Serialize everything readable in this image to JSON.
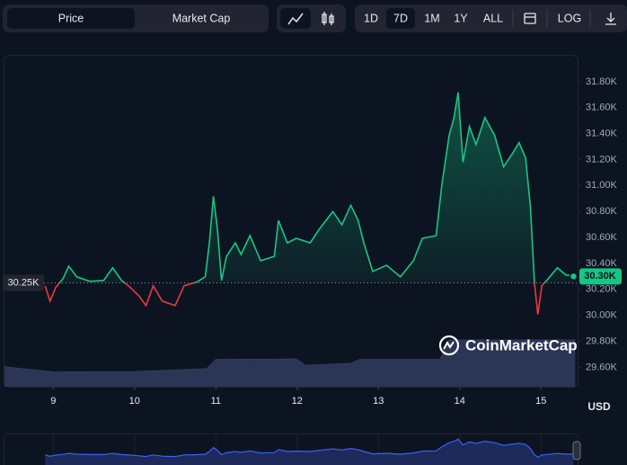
{
  "toolbar": {
    "metric_tabs": [
      "Price",
      "Market Cap"
    ],
    "ranges": [
      "1D",
      "7D",
      "1M",
      "1Y",
      "ALL"
    ],
    "log": "LOG"
  },
  "chart_data": {
    "type": "line",
    "x": [
      8.9,
      8.96,
      9.03,
      9.12,
      9.19,
      9.29,
      9.45,
      9.62,
      9.73,
      9.84,
      9.95,
      10.06,
      10.14,
      10.23,
      10.34,
      10.5,
      10.61,
      10.76,
      10.87,
      10.92,
      10.97,
      11.02,
      11.07,
      11.13,
      11.24,
      11.31,
      11.42,
      11.55,
      11.72,
      11.77,
      11.88,
      11.99,
      12.16,
      12.27,
      12.44,
      12.55,
      12.66,
      12.75,
      12.82,
      12.93,
      13.1,
      13.27,
      13.43,
      13.54,
      13.71,
      13.78,
      13.87,
      13.93,
      13.98,
      14.04,
      14.12,
      14.2,
      14.31,
      14.43,
      14.54,
      14.65,
      14.73,
      14.81,
      14.87,
      14.92,
      14.96,
      15.01,
      15.09,
      15.2,
      15.31,
      15.4
    ],
    "series": [
      {
        "name": "Price",
        "color": "#16c784",
        "below_color": "#ea3943",
        "values": [
          30228,
          30110,
          30214,
          30283,
          30379,
          30297,
          30262,
          30269,
          30366,
          30269,
          30214,
          30145,
          30076,
          30228,
          30110,
          30076,
          30228,
          30255,
          30297,
          30559,
          30917,
          30662,
          30269,
          30455,
          30559,
          30469,
          30614,
          30421,
          30455,
          30731,
          30559,
          30593,
          30559,
          30662,
          30800,
          30697,
          30848,
          30731,
          30559,
          30338,
          30386,
          30297,
          30421,
          30593,
          30614,
          31007,
          31386,
          31524,
          31717,
          31179,
          31455,
          31317,
          31524,
          31386,
          31145,
          31248,
          31331,
          31214,
          30834,
          30248,
          30007,
          30228,
          30283,
          30366,
          30310,
          30310
        ]
      }
    ],
    "xlim": [
      8.4,
      15.45
    ],
    "xticks": [
      9,
      10,
      11,
      12,
      13,
      14,
      15
    ],
    "ylim": [
      29450,
      32000
    ],
    "yticks": [
      {
        "value": 29600,
        "label": "29.60K"
      },
      {
        "value": 29800,
        "label": "29.80K"
      },
      {
        "value": 30000,
        "label": "30.00K"
      },
      {
        "value": 30200,
        "label": "30.20K"
      },
      {
        "value": 30400,
        "label": "30.40K"
      },
      {
        "value": 30600,
        "label": "30.60K"
      },
      {
        "value": 30800,
        "label": "30.80K"
      },
      {
        "value": 31000,
        "label": "31.00K"
      },
      {
        "value": 31200,
        "label": "31.20K"
      },
      {
        "value": 31400,
        "label": "31.40K"
      },
      {
        "value": 31600,
        "label": "31.60K"
      },
      {
        "value": 31800,
        "label": "31.80K"
      }
    ],
    "reference": {
      "value": 30250,
      "label": "30.25K"
    },
    "current": {
      "value": 30300,
      "label": "30.30K"
    },
    "currency": "USD",
    "watermark": "CoinMarketCap",
    "volume": {
      "color": "#2b3555",
      "x": [
        8.4,
        9.01,
        10.01,
        10.89,
        11.0,
        11.99,
        12.1,
        12.66,
        12.77,
        13.76,
        13.87,
        15.42
      ],
      "values": [
        41,
        30,
        31,
        37,
        56,
        57,
        44,
        48,
        56,
        56,
        96,
        96
      ],
      "ylim": [
        0,
        100
      ]
    }
  }
}
